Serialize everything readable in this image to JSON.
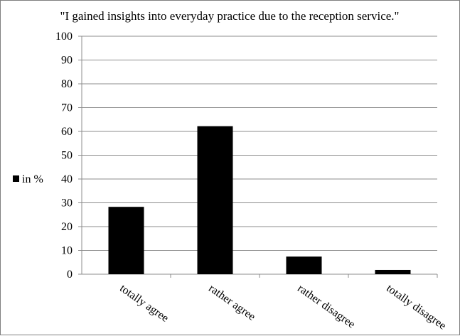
{
  "chart_data": {
    "type": "bar",
    "title": "\"I gained insights into everyday practice due to the reception service.\"",
    "categories": [
      "totally agree",
      "rather agree",
      "rather disagree",
      "totally disagree"
    ],
    "series": [
      {
        "name": "in %",
        "values": [
          28.3,
          62.2,
          7.4,
          1.8
        ],
        "color": "#000000"
      }
    ],
    "xlabel": "",
    "ylabel": "",
    "ylim": [
      0,
      100
    ],
    "yticks": [
      0,
      10,
      20,
      30,
      40,
      50,
      60,
      70,
      80,
      90,
      100
    ],
    "grid": true,
    "legend": "left"
  }
}
